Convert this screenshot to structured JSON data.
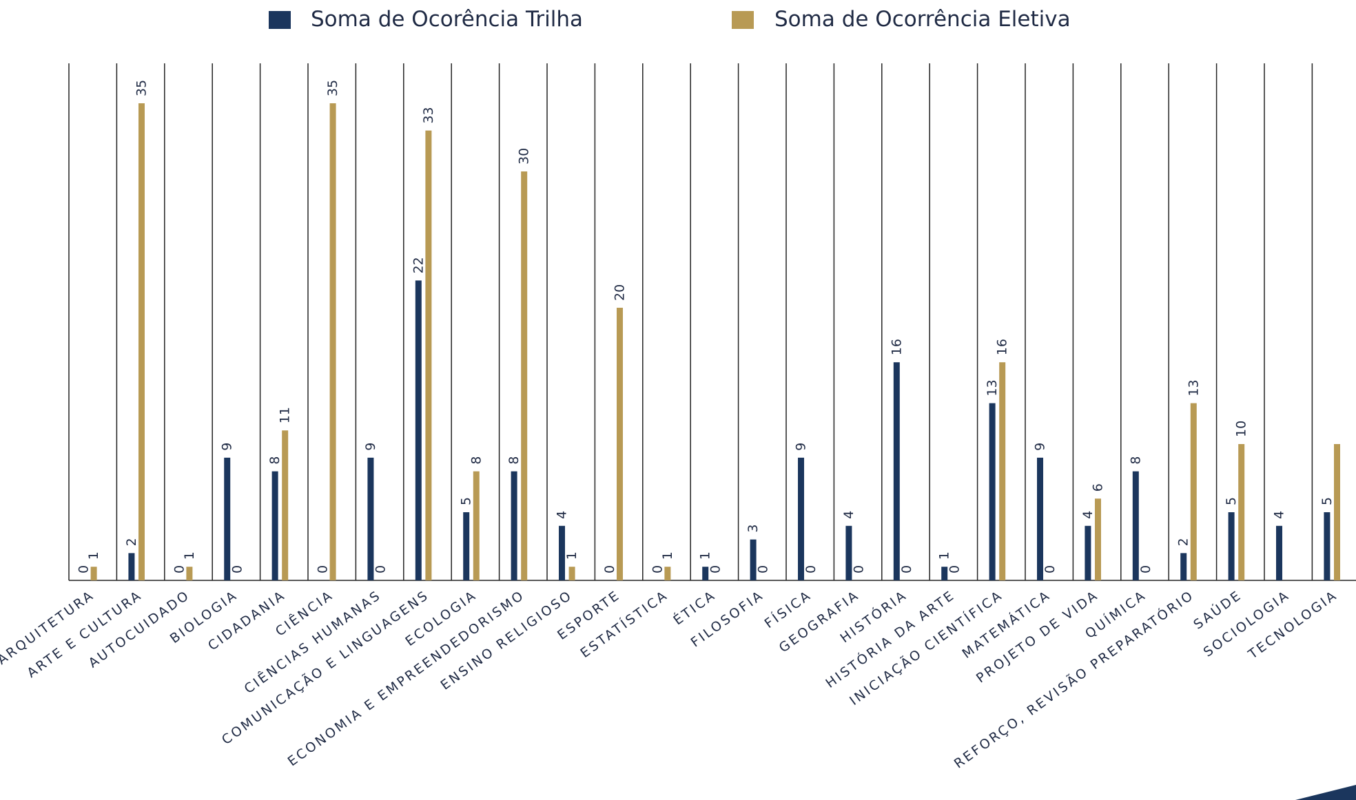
{
  "colors": {
    "trilha": "#1b365d",
    "eletiva": "#b89a54",
    "axis": "#222222",
    "text": "#1f2a44"
  },
  "chart_data": {
    "type": "bar",
    "title": "",
    "xlabel": "",
    "ylabel": "",
    "ylim": [
      0,
      35
    ],
    "grid": "vertical separators between categories",
    "legend_position": "top",
    "categories": [
      "ARQUITETURA",
      "ARTE E CULTURA",
      "AUTOCUIDADO",
      "BIOLOGIA",
      "CIDADANIA",
      "CIÊNCIA",
      "CIÊNCIAS HUMANAS",
      "COMUNICAÇÃO E LINGUAGENS",
      "ECOLOGIA",
      "ECONOMIA E EMPREENDEDORISMO",
      "ENSINO RELIGIOSO",
      "ESPORTE",
      "ESTATÍSTICA",
      "ÉTICA",
      "FILOSOFIA",
      "FÍSICA",
      "GEOGRAFIA",
      "HISTÓRIA",
      "HISTÓRIA DA ARTE",
      "INICIAÇÃO CIENTÍFICA",
      "MATEMÁTICA",
      "PROJETO DE VIDA",
      "QUÍMICA",
      "REFORÇO, REVISÃO PREPARATÓRIO",
      "SAÚDE",
      "SOCIOLOGIA",
      "TECNOLOGIA"
    ],
    "series": [
      {
        "name": "Soma de Ocorência Trilha",
        "values": [
          0,
          2,
          0,
          9,
          8,
          0,
          9,
          22,
          5,
          8,
          4,
          0,
          0,
          1,
          3,
          9,
          4,
          16,
          1,
          13,
          9,
          4,
          8,
          2,
          5,
          4,
          5
        ],
        "labels": [
          "0",
          "2",
          "0",
          "9",
          "8",
          "0",
          "9",
          "22",
          "5",
          "8",
          "4",
          "0",
          "0",
          "1",
          "3",
          "9",
          "4",
          "16",
          "1",
          "13",
          "9",
          "4",
          "8",
          "2",
          "5",
          "4",
          "5"
        ]
      },
      {
        "name": "Soma de Ocorrência Eletiva",
        "values": [
          1,
          35,
          1,
          0,
          11,
          35,
          0,
          33,
          8,
          30,
          1,
          20,
          1,
          0,
          0,
          0,
          0,
          0,
          0,
          16,
          0,
          6,
          0,
          13,
          10,
          0,
          10
        ],
        "labels": [
          "1",
          "35",
          "1",
          "0",
          "11",
          "35",
          "0",
          "33",
          "8",
          "30",
          "1",
          "20",
          "1",
          "0",
          "0",
          "0",
          "0",
          "0",
          "0",
          "16",
          "0",
          "6",
          "0",
          "13",
          "10",
          "",
          ""
        ]
      }
    ]
  }
}
